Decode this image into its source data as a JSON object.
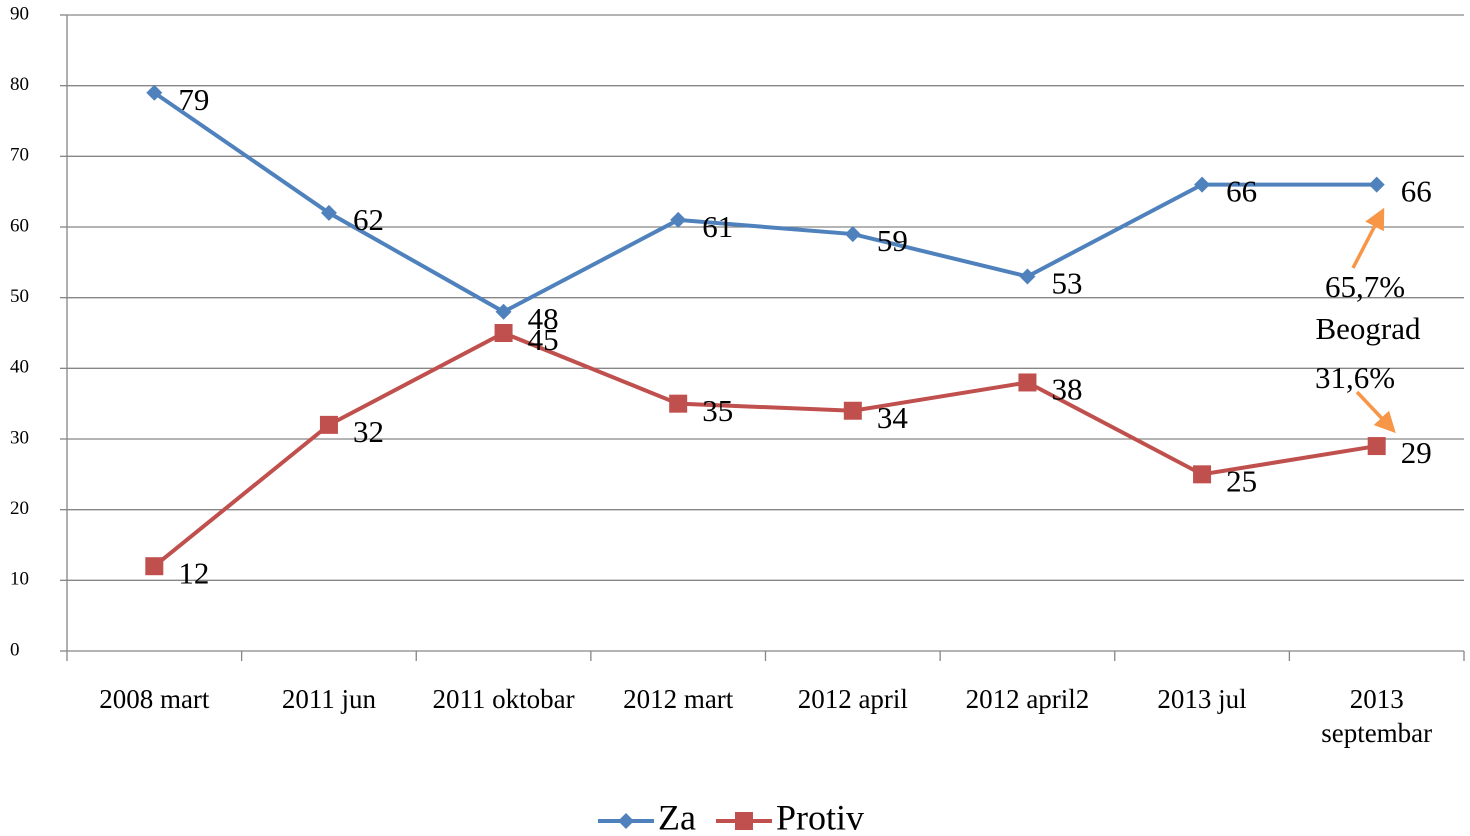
{
  "chart_data": {
    "type": "line",
    "categories": [
      "2008 mart",
      "2011 jun",
      "2011 oktobar",
      "2012 mart",
      "2012 april",
      "2012 april2",
      "2013 jul",
      "2013 septembar"
    ],
    "series": [
      {
        "name": "Za",
        "color": "#4f81bd",
        "marker": "diamond",
        "values": [
          79,
          62,
          48,
          61,
          59,
          53,
          66,
          66
        ]
      },
      {
        "name": "Protiv",
        "color": "#c0504d",
        "marker": "square",
        "values": [
          12,
          32,
          45,
          35,
          34,
          38,
          25,
          29
        ]
      }
    ],
    "ylim": [
      0,
      90
    ],
    "yticks": [
      0,
      10,
      20,
      30,
      40,
      50,
      60,
      70,
      80,
      90
    ],
    "grid": true,
    "annotations": [
      {
        "text": "65,7%"
      },
      {
        "text": "Beograd"
      },
      {
        "text": "31,6%"
      }
    ],
    "annotation_color": "#f79646"
  }
}
